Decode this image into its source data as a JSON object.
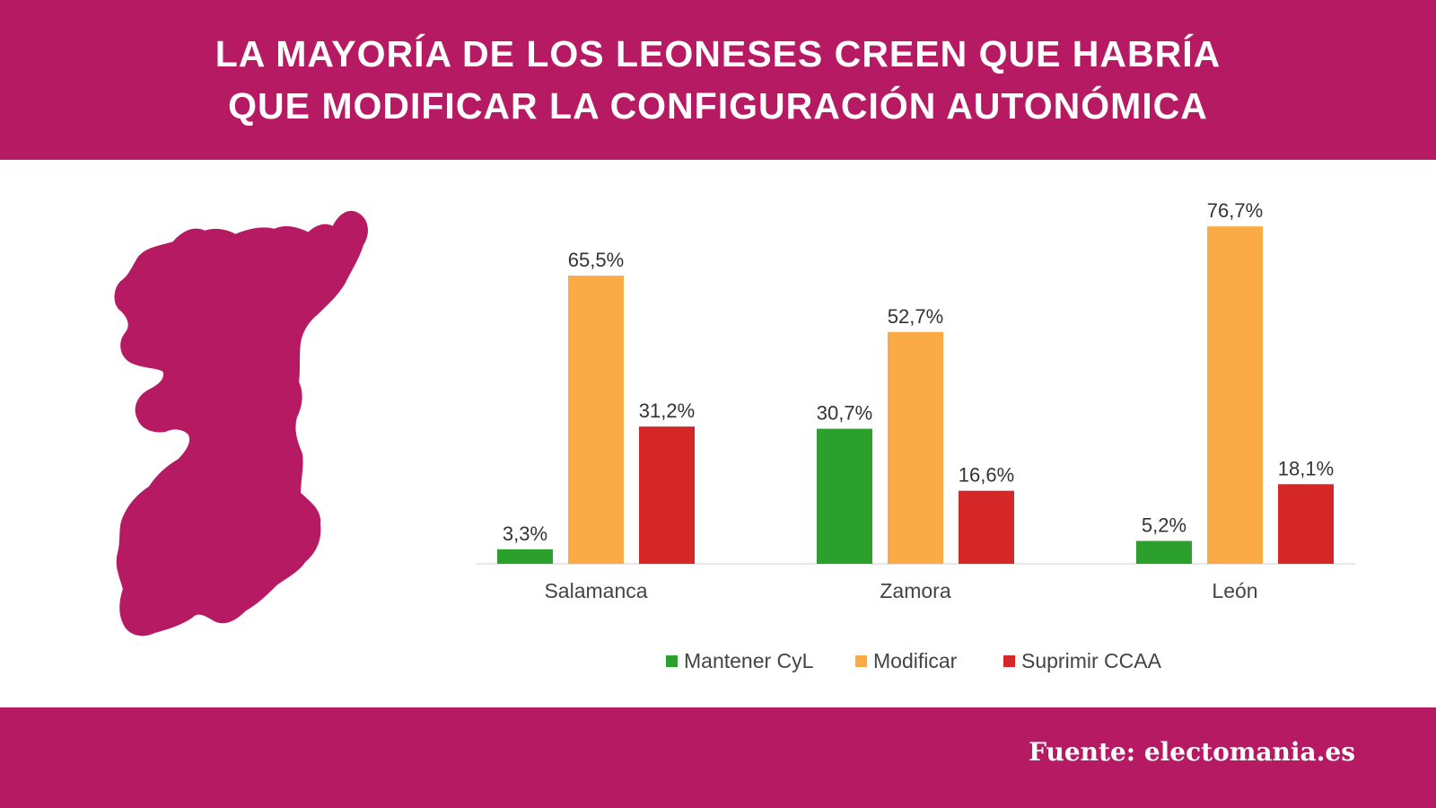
{
  "header": {
    "title_line1": "LA MAYORÍA DE LOS LEONESES CREEN QUE HABRÍA",
    "title_line2": "QUE MODIFICAR LA CONFIGURACIÓN AUTONÓMICA"
  },
  "footer": {
    "source": "Fuente: electomania.es"
  },
  "colors": {
    "brand": "#b61a62",
    "mantener": "#2ca02c",
    "modificar": "#fbab45",
    "suprimir": "#d62728"
  },
  "map_icon": "region-map-leon-salamanca-zamora",
  "chart_data": {
    "type": "bar",
    "categories": [
      "Salamanca",
      "Zamora",
      "León"
    ],
    "series": [
      {
        "name": "Mantener CyL",
        "values": [
          3.3,
          30.7,
          5.2
        ],
        "labels": [
          "3,3%",
          "30,7%",
          "5,2%"
        ],
        "color": "#2ca02c"
      },
      {
        "name": "Modificar",
        "values": [
          65.5,
          52.7,
          76.7
        ],
        "labels": [
          "65,5%",
          "52,7%",
          "76,7%"
        ],
        "color": "#fbab45"
      },
      {
        "name": "Suprimir CCAA",
        "values": [
          31.2,
          16.6,
          18.1
        ],
        "labels": [
          "31,2%",
          "16,6%",
          "18,1%"
        ],
        "color": "#d62728"
      }
    ],
    "title": "",
    "xlabel": "",
    "ylabel": "",
    "ylim": [
      0,
      80
    ],
    "grid": false,
    "legend": "bottom"
  }
}
